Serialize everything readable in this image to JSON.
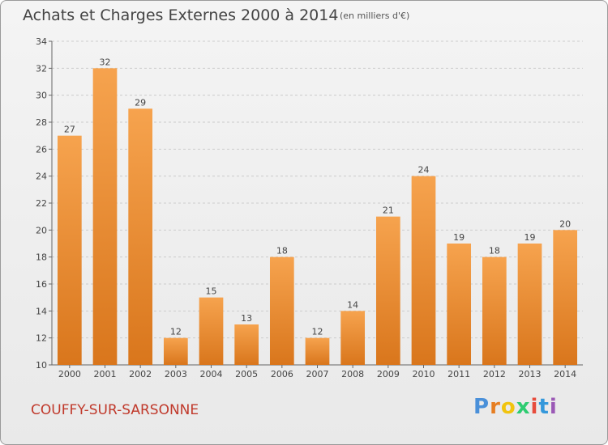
{
  "header": {
    "title": "Achats et Charges Externes 2000 à 2014",
    "unit": "(en milliers d'€)"
  },
  "footer": {
    "location": "COUFFY-SUR-SARSONNE",
    "logo_text": "Proxiti",
    "logo_colors": [
      "#4a90d9",
      "#e67e22",
      "#f1c40f",
      "#2ecc71",
      "#e74c3c",
      "#3498db",
      "#9b59b6"
    ]
  },
  "colors": {
    "bar_top": "#f6a34e",
    "bar_bottom": "#d9761c",
    "grid": "#cccccc",
    "title": "#444444",
    "location": "#c0392b"
  },
  "chart_data": {
    "type": "bar",
    "title": "Achats et Charges Externes 2000 à 2014",
    "subtitle": "(en milliers d'€)",
    "xlabel": "",
    "ylabel": "",
    "categories": [
      "2000",
      "2001",
      "2002",
      "2003",
      "2004",
      "2005",
      "2006",
      "2007",
      "2008",
      "2009",
      "2010",
      "2011",
      "2012",
      "2013",
      "2014"
    ],
    "values": [
      27,
      32,
      29,
      12,
      15,
      13,
      18,
      12,
      14,
      21,
      24,
      19,
      18,
      19,
      20
    ],
    "ylim": [
      10,
      34
    ],
    "yticks": [
      10,
      12,
      14,
      16,
      18,
      20,
      22,
      24,
      26,
      28,
      30,
      32,
      34
    ],
    "grid": true,
    "data_labels": true,
    "legend": "none"
  }
}
